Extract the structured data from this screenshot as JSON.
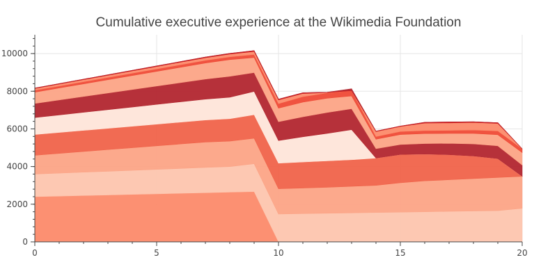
{
  "chart_data": {
    "type": "area",
    "stacked": true,
    "title": "Cumulative executive experience at the Wikimedia Foundation",
    "xlabel": "",
    "ylabel": "",
    "xlim": [
      0,
      20
    ],
    "ylim": [
      0,
      11000
    ],
    "x_ticks": [
      0,
      5,
      10,
      15,
      20
    ],
    "y_ticks": [
      0,
      2000,
      4000,
      6000,
      8000,
      10000
    ],
    "grid": true,
    "x": [
      0,
      1,
      2,
      3,
      4,
      5,
      6,
      7,
      8,
      9,
      10,
      11,
      12,
      13,
      14,
      15,
      16,
      17,
      18,
      19,
      20
    ],
    "series": [
      {
        "color": "#fc8a6a",
        "values": [
          2400,
          2430,
          2460,
          2490,
          2520,
          2550,
          2580,
          2610,
          2640,
          2670,
          0,
          0,
          0,
          0,
          0,
          0,
          0,
          0,
          0,
          0,
          0
        ]
      },
      {
        "color": "#fdc5ae",
        "values": [
          1200,
          1220,
          1240,
          1260,
          1280,
          1300,
          1320,
          1340,
          1360,
          1480,
          1480,
          1500,
          1520,
          1540,
          1560,
          1580,
          1600,
          1620,
          1640,
          1660,
          1780
        ]
      },
      {
        "color": "#fca486",
        "values": [
          1000,
          1050,
          1100,
          1150,
          1200,
          1250,
          1300,
          1350,
          1350,
          1350,
          1340,
          1360,
          1380,
          1410,
          1440,
          1560,
          1640,
          1680,
          1720,
          1760,
          1700
        ]
      },
      {
        "color": "#f0634a",
        "values": [
          1100,
          1110,
          1120,
          1130,
          1140,
          1150,
          1160,
          1170,
          1190,
          1250,
          1360,
          1380,
          1400,
          1410,
          1450,
          1500,
          1420,
          1330,
          1200,
          1000,
          0
        ]
      },
      {
        "color": "#fee5d9",
        "values": [
          900,
          930,
          960,
          990,
          1020,
          1050,
          1080,
          1110,
          1140,
          1240,
          1200,
          1340,
          1460,
          1600,
          0,
          0,
          0,
          0,
          0,
          0,
          0
        ]
      },
      {
        "color": "#b2262f",
        "values": [
          750,
          795,
          840,
          885,
          930,
          975,
          1020,
          1065,
          1110,
          1000,
          1000,
          1060,
          1110,
          1110,
          500,
          530,
          560,
          600,
          640,
          680,
          600
        ]
      },
      {
        "color": "#fca486",
        "values": [
          600,
          636,
          672,
          708,
          744,
          780,
          816,
          852,
          888,
          800,
          720,
          780,
          760,
          680,
          500,
          530,
          530,
          530,
          560,
          590,
          660
        ]
      },
      {
        "color": "#ef4a36",
        "values": [
          100,
          106,
          112,
          118,
          124,
          130,
          136,
          142,
          148,
          160,
          240,
          290,
          280,
          280,
          140,
          160,
          160,
          160,
          180,
          200,
          200
        ]
      },
      {
        "color": "#fc8a6a",
        "values": [
          100,
          106,
          112,
          118,
          124,
          130,
          136,
          142,
          148,
          160,
          200,
          170,
          20,
          0,
          270,
          270,
          400,
          400,
          400,
          400,
          0
        ]
      },
      {
        "color": "#cb181d",
        "values": [
          20,
          22,
          24,
          26,
          28,
          30,
          32,
          34,
          36,
          50,
          40,
          40,
          20,
          20,
          20,
          20,
          40,
          50,
          40,
          40,
          0
        ]
      },
      {
        "color": "#b2262f",
        "values": [
          0,
          0,
          0,
          0,
          0,
          0,
          0,
          0,
          0,
          0,
          0,
          0,
          0,
          80,
          0,
          0,
          0,
          0,
          0,
          0,
          0
        ]
      }
    ]
  }
}
